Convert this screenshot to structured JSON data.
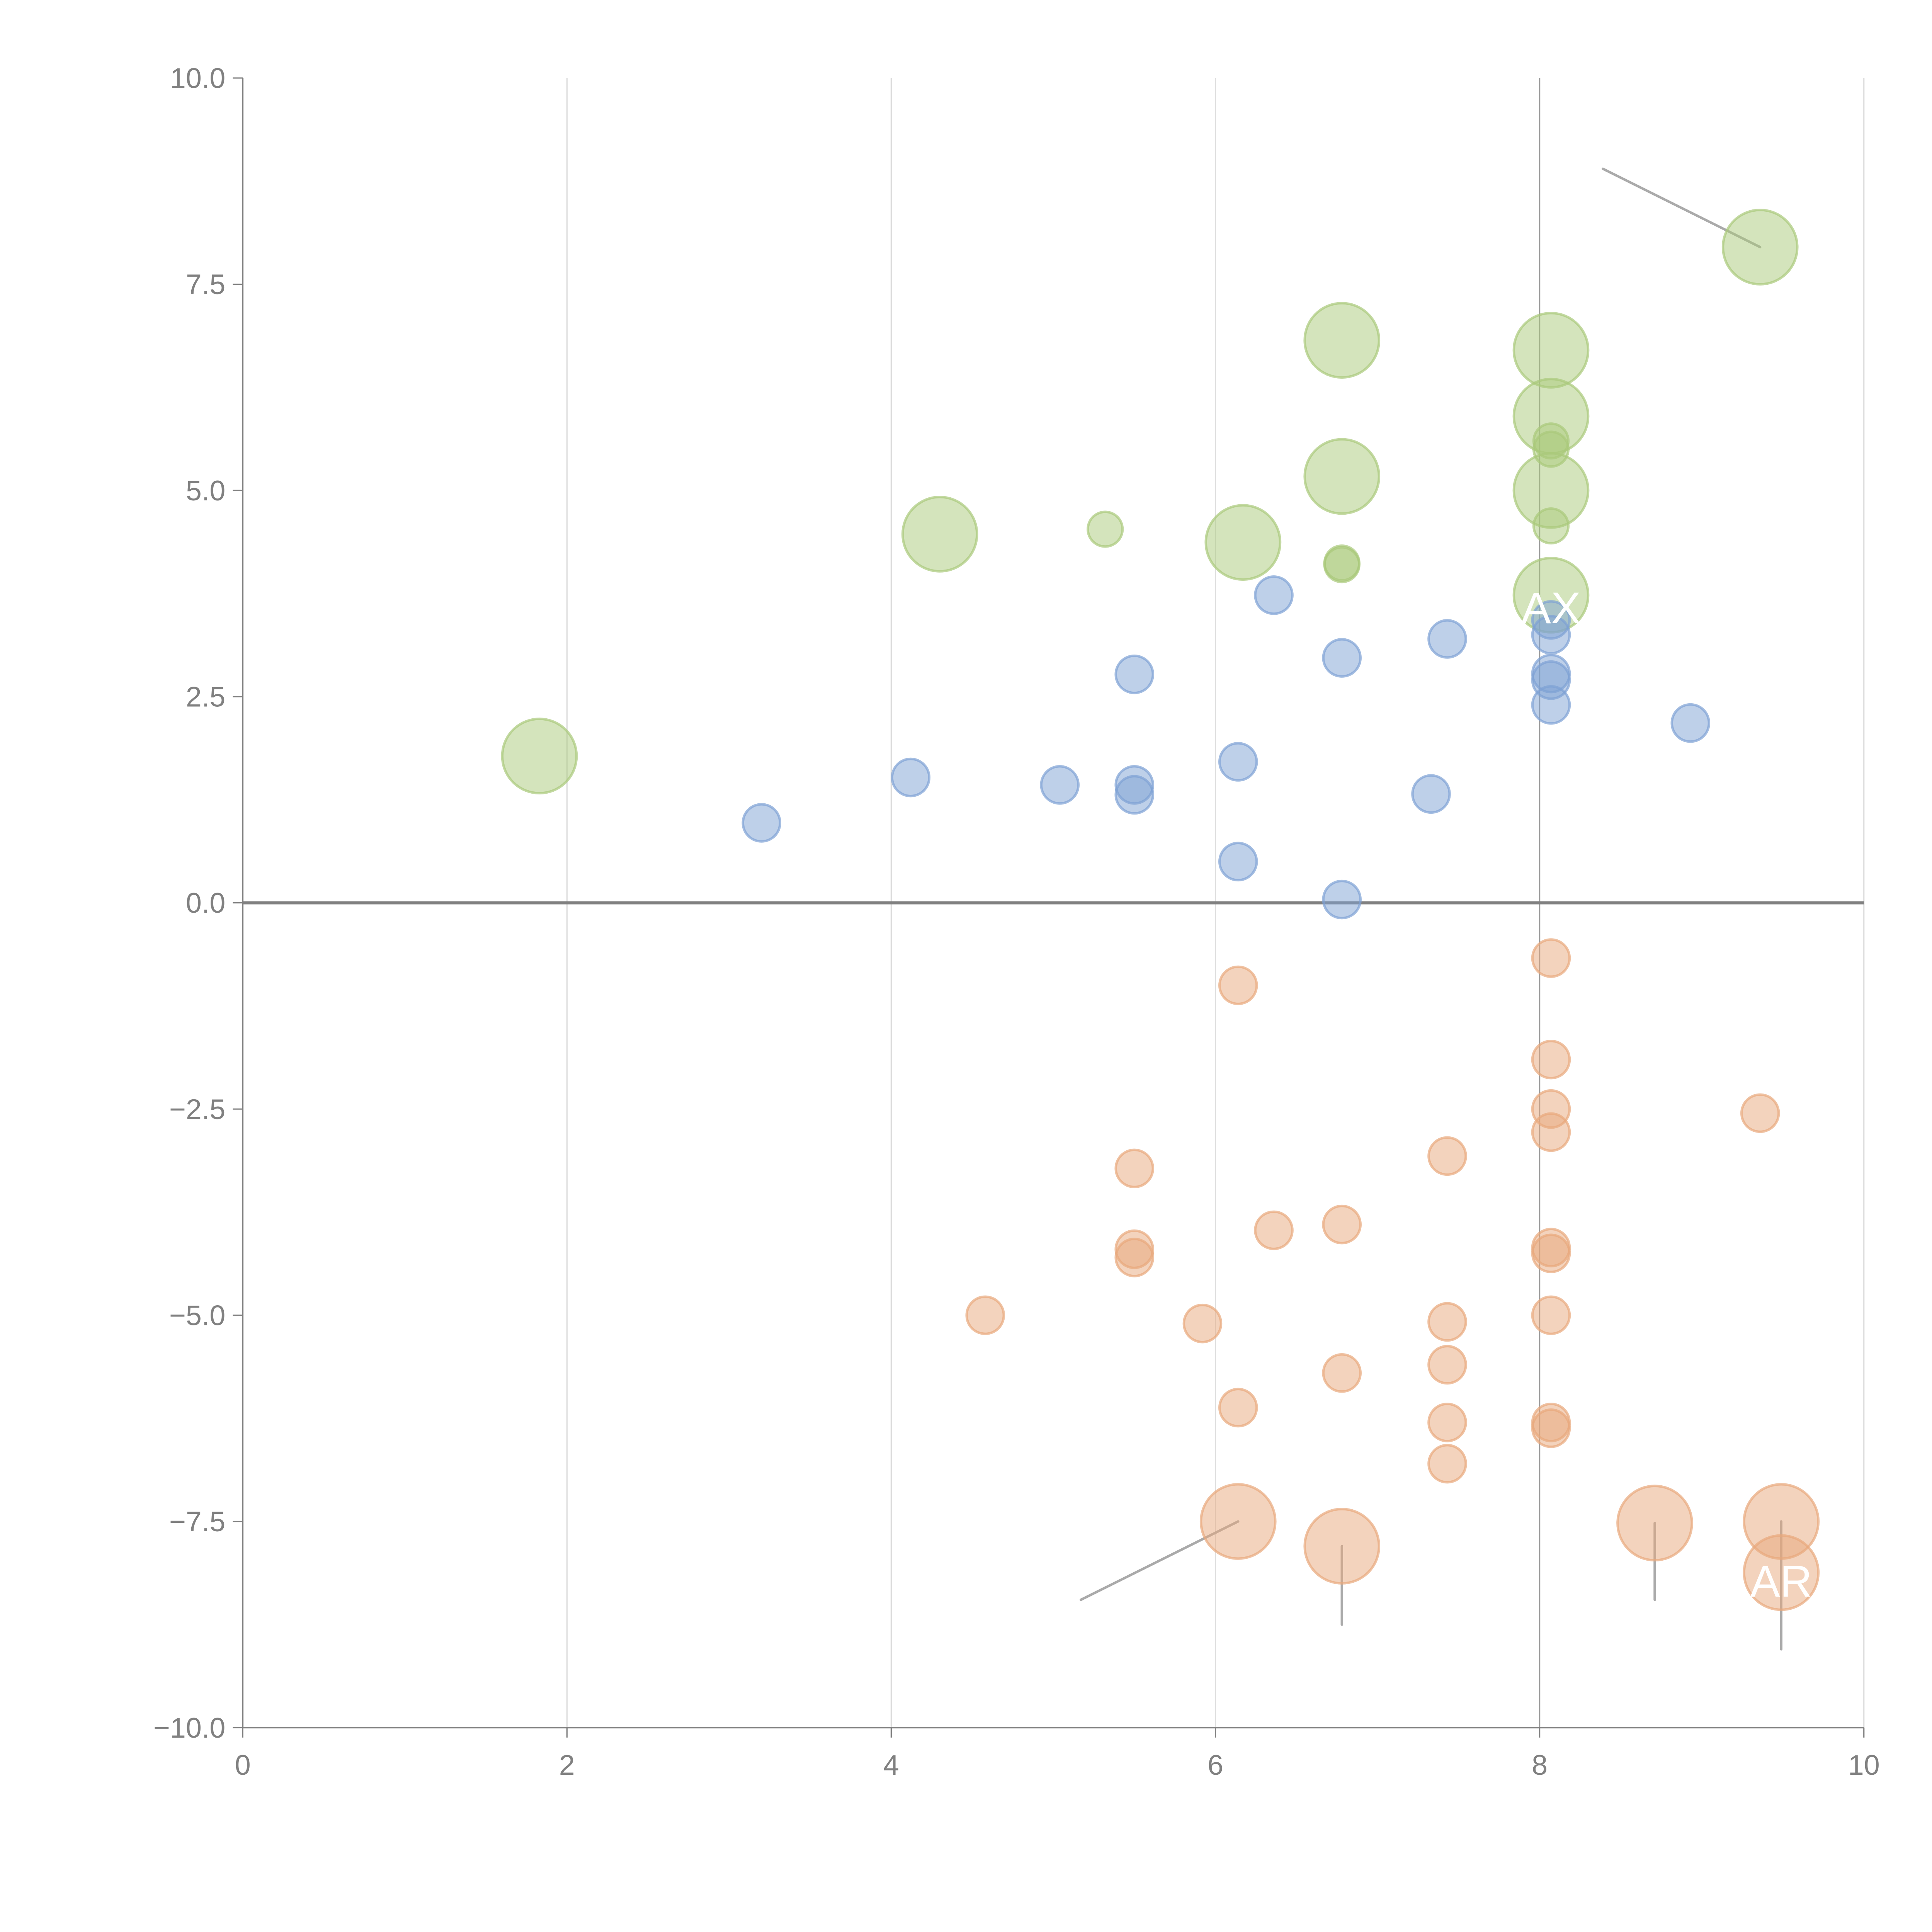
{
  "chart_data": {
    "type": "scatter",
    "title": "",
    "xlabel": "",
    "ylabel": "",
    "xlim": [
      0,
      10
    ],
    "ylim": [
      -10,
      10
    ],
    "x_ticks": [
      "0",
      "2",
      "4",
      "6",
      "8",
      "10"
    ],
    "x_tick_values": [
      0,
      2,
      4,
      6,
      8,
      10
    ],
    "y_ticks": [
      "10.0",
      "7.5",
      "5.0",
      "2.5",
      "0.0",
      "−2.5",
      "−5.0",
      "−7.5",
      "−10.0"
    ],
    "y_tick_values": [
      10,
      7.5,
      5,
      2.5,
      0,
      -2.5,
      -5,
      -7.5,
      -10
    ],
    "grid": "vertical",
    "reference_lines": {
      "horizontal_y": 0,
      "vertical_x": 8
    },
    "legend": "none",
    "series": [
      {
        "name": "green",
        "color": "#a9c97a",
        "points": [
          {
            "x": 1.83,
            "y": 1.78,
            "size": "large"
          },
          {
            "x": 4.3,
            "y": 4.47,
            "size": "large"
          },
          {
            "x": 5.32,
            "y": 4.53,
            "size": "small"
          },
          {
            "x": 6.17,
            "y": 4.37,
            "size": "large"
          },
          {
            "x": 6.78,
            "y": 6.82,
            "size": "large"
          },
          {
            "x": 6.78,
            "y": 5.17,
            "size": "large"
          },
          {
            "x": 6.78,
            "y": 4.12,
            "size": "small"
          },
          {
            "x": 6.78,
            "y": 4.1,
            "size": "small"
          },
          {
            "x": 8.07,
            "y": 6.7,
            "size": "large"
          },
          {
            "x": 8.07,
            "y": 5.9,
            "size": "large"
          },
          {
            "x": 8.07,
            "y": 5.6,
            "size": "small"
          },
          {
            "x": 8.07,
            "y": 5.5,
            "size": "small"
          },
          {
            "x": 8.07,
            "y": 5.0,
            "size": "large"
          },
          {
            "x": 8.07,
            "y": 4.57,
            "size": "small"
          },
          {
            "x": 8.07,
            "y": 3.73,
            "size": "large"
          },
          {
            "x": 9.36,
            "y": 7.95,
            "size": "large"
          }
        ]
      },
      {
        "name": "blue",
        "color": "#7ea1d4",
        "points": [
          {
            "x": 3.2,
            "y": 0.97,
            "size": "small"
          },
          {
            "x": 4.12,
            "y": 1.52,
            "size": "small"
          },
          {
            "x": 5.04,
            "y": 1.43,
            "size": "small"
          },
          {
            "x": 5.5,
            "y": 2.77,
            "size": "small"
          },
          {
            "x": 5.5,
            "y": 1.43,
            "size": "small"
          },
          {
            "x": 5.5,
            "y": 1.31,
            "size": "small"
          },
          {
            "x": 6.14,
            "y": 1.71,
            "size": "small"
          },
          {
            "x": 6.14,
            "y": 0.5,
            "size": "small"
          },
          {
            "x": 6.36,
            "y": 3.73,
            "size": "small"
          },
          {
            "x": 6.78,
            "y": 2.97,
            "size": "small"
          },
          {
            "x": 6.78,
            "y": 0.04,
            "size": "small"
          },
          {
            "x": 7.33,
            "y": 1.32,
            "size": "small"
          },
          {
            "x": 7.43,
            "y": 3.2,
            "size": "small"
          },
          {
            "x": 8.07,
            "y": 3.43,
            "size": "small"
          },
          {
            "x": 8.07,
            "y": 3.25,
            "size": "small"
          },
          {
            "x": 8.07,
            "y": 2.78,
            "size": "small"
          },
          {
            "x": 8.07,
            "y": 2.7,
            "size": "small"
          },
          {
            "x": 8.07,
            "y": 2.4,
            "size": "small"
          },
          {
            "x": 8.93,
            "y": 2.18,
            "size": "small"
          }
        ]
      },
      {
        "name": "orange",
        "color": "#e8a87c",
        "points": [
          {
            "x": 4.58,
            "y": -5.0,
            "size": "small"
          },
          {
            "x": 5.5,
            "y": -3.22,
            "size": "small"
          },
          {
            "x": 5.5,
            "y": -4.2,
            "size": "small"
          },
          {
            "x": 5.5,
            "y": -4.3,
            "size": "small"
          },
          {
            "x": 5.92,
            "y": -5.1,
            "size": "small"
          },
          {
            "x": 6.14,
            "y": -1.0,
            "size": "small"
          },
          {
            "x": 6.14,
            "y": -6.12,
            "size": "small"
          },
          {
            "x": 6.36,
            "y": -3.97,
            "size": "small"
          },
          {
            "x": 6.78,
            "y": -3.9,
            "size": "small"
          },
          {
            "x": 6.78,
            "y": -5.7,
            "size": "small"
          },
          {
            "x": 7.43,
            "y": -3.07,
            "size": "small"
          },
          {
            "x": 7.43,
            "y": -5.08,
            "size": "small"
          },
          {
            "x": 7.43,
            "y": -5.6,
            "size": "small"
          },
          {
            "x": 7.43,
            "y": -6.3,
            "size": "small"
          },
          {
            "x": 7.43,
            "y": -6.8,
            "size": "small"
          },
          {
            "x": 8.07,
            "y": -0.67,
            "size": "small"
          },
          {
            "x": 8.07,
            "y": -1.9,
            "size": "small"
          },
          {
            "x": 8.07,
            "y": -2.5,
            "size": "small"
          },
          {
            "x": 8.07,
            "y": -2.78,
            "size": "small"
          },
          {
            "x": 8.07,
            "y": -4.18,
            "size": "small"
          },
          {
            "x": 8.07,
            "y": -4.25,
            "size": "small"
          },
          {
            "x": 8.07,
            "y": -5.0,
            "size": "small"
          },
          {
            "x": 8.07,
            "y": -6.3,
            "size": "small"
          },
          {
            "x": 8.07,
            "y": -6.37,
            "size": "small"
          },
          {
            "x": 9.36,
            "y": -2.55,
            "size": "small"
          },
          {
            "x": 6.14,
            "y": -7.5,
            "size": "large"
          },
          {
            "x": 6.78,
            "y": -7.8,
            "size": "large"
          },
          {
            "x": 8.71,
            "y": -7.52,
            "size": "large"
          },
          {
            "x": 9.49,
            "y": -7.5,
            "size": "large"
          },
          {
            "x": 9.49,
            "y": -8.12,
            "size": "large"
          }
        ]
      }
    ],
    "annotations": [
      {
        "text": "AX",
        "x": 8.07,
        "y": 3.6
      },
      {
        "text": "AR",
        "x": 9.49,
        "y": -8.2
      }
    ],
    "leader_lines": [
      {
        "from": [
          9.36,
          7.95
        ],
        "to": [
          8.39,
          8.9
        ]
      },
      {
        "from": [
          6.14,
          -7.5
        ],
        "to": [
          5.17,
          -8.45
        ]
      },
      {
        "from": [
          6.78,
          -7.8
        ],
        "to": [
          6.78,
          -8.75
        ]
      },
      {
        "from": [
          8.71,
          -7.52
        ],
        "to": [
          8.71,
          -8.45
        ]
      },
      {
        "from": [
          9.49,
          -7.5
        ],
        "to": [
          9.49,
          -9.05
        ]
      }
    ]
  }
}
